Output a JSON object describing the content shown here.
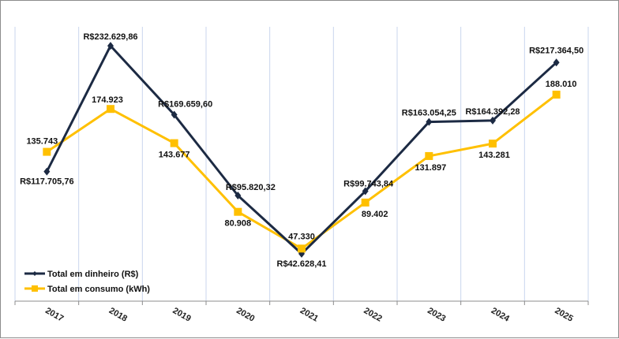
{
  "chart_data": {
    "type": "line",
    "title": "",
    "xlabel": "",
    "ylabel": "",
    "categories": [
      "2017",
      "2018",
      "2019",
      "2020",
      "2021",
      "2022",
      "2023",
      "2024",
      "2025"
    ],
    "ylim": [
      0,
      250000
    ],
    "grid": "vertical",
    "legend_position": "bottom-left",
    "series": [
      {
        "name": "Total em dinheiro (R$)",
        "color": "#1c2a43",
        "marker": "diamond",
        "values": [
          117705.76,
          232629.86,
          169659.6,
          95820.32,
          42628.41,
          99743.84,
          163054.25,
          164392.28,
          217364.5
        ],
        "labels": [
          "R$117.705,76",
          "R$232.629,86",
          "R$169.659,60",
          "R$95.820,32",
          "R$42.628,41",
          "R$99.743,84",
          "R$163.054,25",
          "R$164.392,28",
          "R$217.364,50"
        ]
      },
      {
        "name": "Total em consumo (kWh)",
        "color": "#ffc000",
        "marker": "square",
        "values": [
          135743,
          174923,
          143677,
          80908,
          47330,
          89402,
          131897,
          143281,
          188010
        ],
        "labels": [
          "135.743",
          "174.923",
          "143.677",
          "80.908",
          "47.330",
          "89.402",
          "131.897",
          "143.281",
          "188.010"
        ]
      }
    ]
  }
}
